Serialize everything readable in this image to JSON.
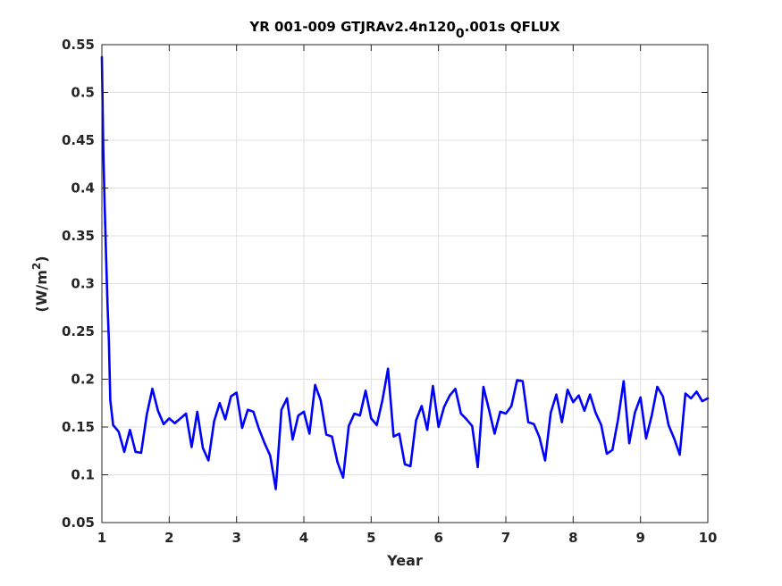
{
  "chart_data": {
    "type": "line",
    "title": {
      "prefix": "YR 001-009 GTJRAv2.4n120",
      "subscript": "0",
      "suffix": ".001s QFLUX"
    },
    "xlabel": "Year",
    "ylabel": {
      "prefix": "(W/m",
      "superscript": "2",
      "suffix": ")"
    },
    "xlim": [
      1,
      10
    ],
    "ylim": [
      0.05,
      0.55
    ],
    "xticks": [
      1,
      2,
      3,
      4,
      5,
      6,
      7,
      8,
      9,
      10
    ],
    "yticks": [
      0.05,
      0.1,
      0.15,
      0.2,
      0.25,
      0.3,
      0.35,
      0.4,
      0.45,
      0.5,
      0.55
    ],
    "xtick_labels": [
      "1",
      "2",
      "3",
      "4",
      "5",
      "6",
      "7",
      "8",
      "9",
      "10"
    ],
    "ytick_labels": [
      "0.05",
      "0.1",
      "0.15",
      "0.2",
      "0.25",
      "0.3",
      "0.35",
      "0.4",
      "0.45",
      "0.5",
      "0.55"
    ],
    "grid": true,
    "series": [
      {
        "color": "#0000ff",
        "x": [
          1.0,
          1.021,
          1.042,
          1.062,
          1.083,
          1.104,
          1.125,
          1.167,
          1.25,
          1.333,
          1.417,
          1.5,
          1.583,
          1.667,
          1.75,
          1.833,
          1.917,
          2.0,
          2.083,
          2.167,
          2.25,
          2.333,
          2.417,
          2.5,
          2.583,
          2.667,
          2.75,
          2.833,
          2.917,
          3.0,
          3.083,
          3.167,
          3.25,
          3.333,
          3.417,
          3.5,
          3.583,
          3.667,
          3.75,
          3.833,
          3.917,
          4.0,
          4.083,
          4.167,
          4.25,
          4.333,
          4.417,
          4.5,
          4.583,
          4.667,
          4.75,
          4.833,
          4.917,
          5.0,
          5.083,
          5.167,
          5.25,
          5.333,
          5.417,
          5.5,
          5.583,
          5.667,
          5.75,
          5.833,
          5.917,
          6.0,
          6.083,
          6.167,
          6.25,
          6.333,
          6.417,
          6.5,
          6.583,
          6.667,
          6.75,
          6.833,
          6.917,
          7.0,
          7.083,
          7.167,
          7.25,
          7.333,
          7.417,
          7.5,
          7.583,
          7.667,
          7.75,
          7.833,
          7.917,
          8.0,
          8.083,
          8.167,
          8.25,
          8.333,
          8.417,
          8.5,
          8.583,
          8.667,
          8.75,
          8.833,
          8.917,
          9.0,
          9.083,
          9.167,
          9.25,
          9.333,
          9.417,
          9.5,
          9.583,
          9.667,
          9.75,
          9.833,
          9.917,
          10.0
        ],
        "values": [
          0.537,
          0.44,
          0.38,
          0.33,
          0.28,
          0.24,
          0.178,
          0.152,
          0.145,
          0.124,
          0.147,
          0.124,
          0.123,
          0.163,
          0.19,
          0.167,
          0.153,
          0.159,
          0.154,
          0.159,
          0.164,
          0.129,
          0.166,
          0.128,
          0.115,
          0.156,
          0.175,
          0.158,
          0.182,
          0.186,
          0.149,
          0.168,
          0.166,
          0.148,
          0.133,
          0.12,
          0.085,
          0.168,
          0.18,
          0.137,
          0.162,
          0.166,
          0.143,
          0.194,
          0.178,
          0.142,
          0.14,
          0.113,
          0.097,
          0.151,
          0.164,
          0.162,
          0.188,
          0.159,
          0.152,
          0.178,
          0.211,
          0.14,
          0.143,
          0.111,
          0.109,
          0.157,
          0.172,
          0.147,
          0.193,
          0.15,
          0.171,
          0.183,
          0.19,
          0.164,
          0.158,
          0.151,
          0.108,
          0.192,
          0.168,
          0.143,
          0.166,
          0.164,
          0.172,
          0.199,
          0.198,
          0.155,
          0.153,
          0.139,
          0.115,
          0.165,
          0.184,
          0.155,
          0.189,
          0.176,
          0.183,
          0.167,
          0.184,
          0.165,
          0.152,
          0.122,
          0.126,
          0.158,
          0.198,
          0.133,
          0.165,
          0.181,
          0.138,
          0.162,
          0.192,
          0.182,
          0.152,
          0.138,
          0.121,
          0.185,
          0.18,
          0.187,
          0.177,
          0.18
        ]
      }
    ]
  }
}
